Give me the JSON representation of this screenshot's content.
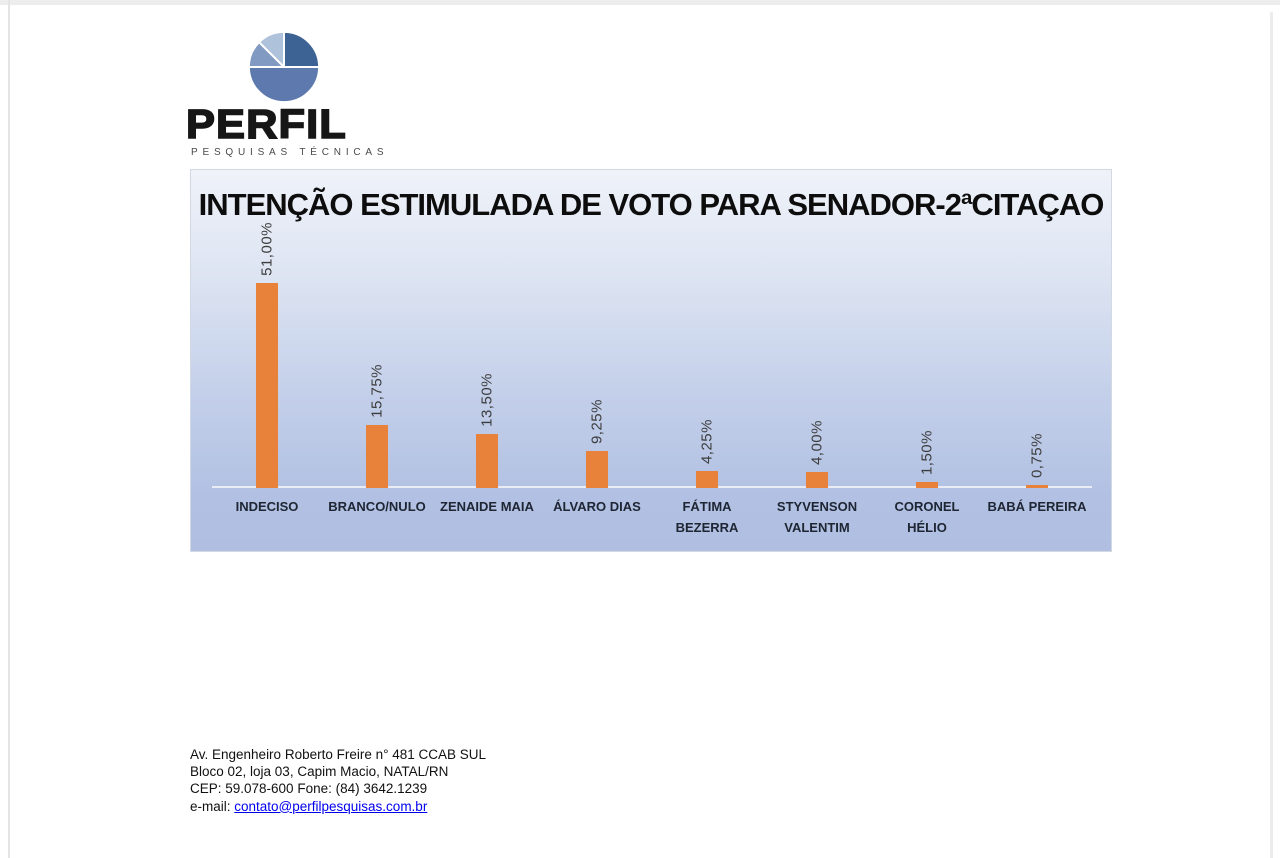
{
  "logo": {
    "brand": "PERFIL",
    "subtitle": "PESQUISAS TÉCNICAS",
    "pie_colors": {
      "top_right": "#3d6394",
      "bottom": "#5d79ae",
      "mid_left": "#809ac2",
      "top_left": "#afc2db"
    }
  },
  "chart_data": {
    "type": "bar",
    "title": "INTENÇÃO ESTIMULADA DE VOTO PARA SENADOR-2ªCITAÇAO",
    "categories": [
      "INDECISO",
      "BRANCO/NULO",
      "ZENAIDE MAIA",
      "ÁLVARO DIAS",
      "FÁTIMA BEZERRA",
      "STYVENSON VALENTIM",
      "CORONEL HÉLIO",
      "BABÁ PEREIRA"
    ],
    "values": [
      51.0,
      15.75,
      13.5,
      9.25,
      4.25,
      4.0,
      1.5,
      0.75
    ],
    "value_labels": [
      "51,00%",
      "15,75%",
      "13,50%",
      "9,25%",
      "4,25%",
      "4,00%",
      "1,50%",
      "0,75%"
    ],
    "bar_color": "#e8813a",
    "value_label_rotation": -90,
    "xlabel": "",
    "ylabel": "",
    "ylim": [
      0,
      79
    ],
    "grid": false,
    "legend": null,
    "background_gradient": [
      "#eff2f9",
      "#b0bfe1"
    ]
  },
  "footer": {
    "line1": "Av. Engenheiro Roberto Freire n° 481 CCAB SUL",
    "line2": "Bloco 02, loja 03, Capim Macio, NATAL/RN",
    "line3": "CEP: 59.078-600 Fone: (84) 3642.1239",
    "email_label": "e-mail: ",
    "email": "contato@perfilpesquisas.com.br"
  }
}
